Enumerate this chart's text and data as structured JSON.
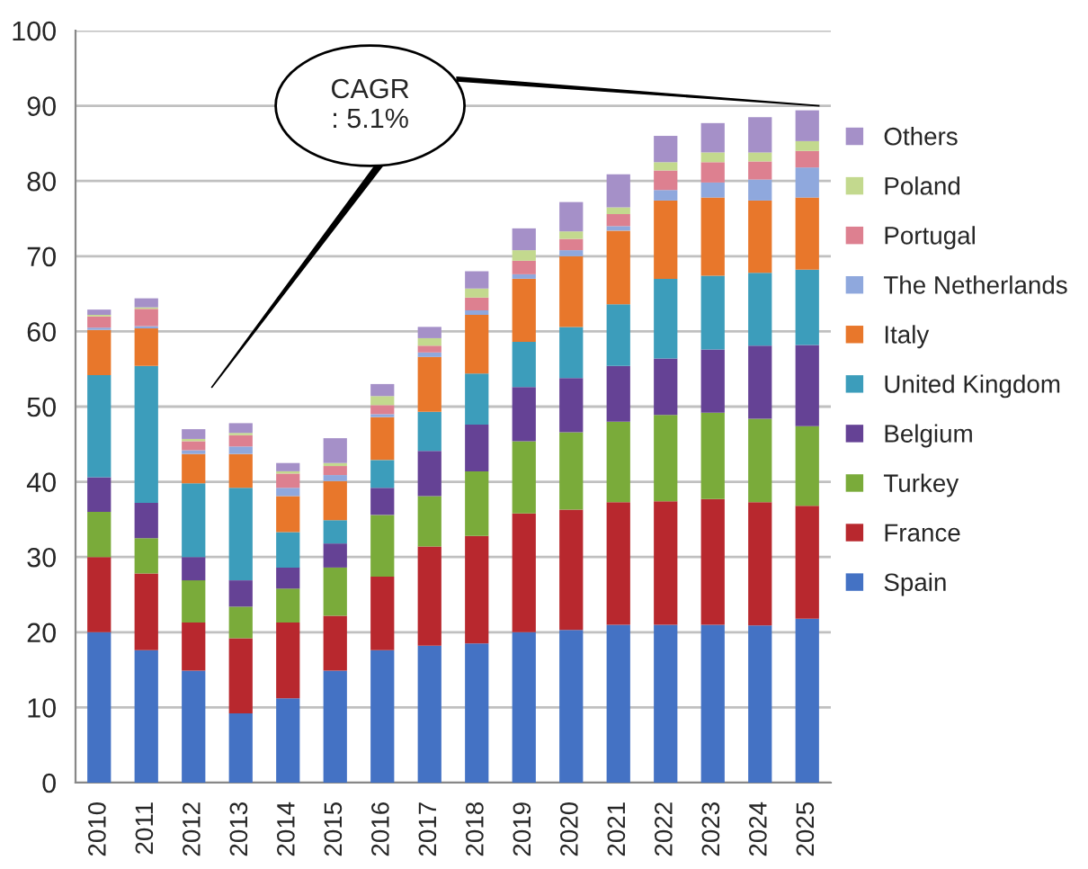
{
  "chart_data": {
    "type": "bar",
    "stacked": true,
    "categories": [
      "2010",
      "2011",
      "2012",
      "2013",
      "2014",
      "2015",
      "2016",
      "2017",
      "2018",
      "2019",
      "2020",
      "2021",
      "2022",
      "2023",
      "2024",
      "2025"
    ],
    "series": [
      {
        "name": "Spain",
        "color": "#4472c4",
        "values": [
          20,
          17.6,
          14.9,
          9.2,
          11.2,
          14.9,
          17.6,
          18.2,
          18.5,
          20,
          20.3,
          21,
          21,
          21,
          20.9,
          21.8
        ]
      },
      {
        "name": "France",
        "color": "#b8282e",
        "values": [
          10,
          10.2,
          6.4,
          10,
          10.1,
          7.3,
          9.8,
          13.2,
          14.3,
          15.8,
          16,
          16.3,
          16.4,
          16.7,
          16.4,
          15
        ]
      },
      {
        "name": "Turkey",
        "color": "#7aab3a",
        "values": [
          6,
          4.7,
          5.6,
          4.2,
          4.5,
          6.4,
          8.2,
          6.7,
          8.6,
          9.6,
          10.3,
          10.7,
          11.5,
          11.5,
          11.1,
          10.6
        ]
      },
      {
        "name": "Belgium",
        "color": "#654295",
        "values": [
          4.6,
          4.7,
          3.1,
          3.5,
          2.8,
          3.2,
          3.6,
          6,
          6.2,
          7.2,
          7.2,
          7.4,
          7.5,
          8.4,
          9.7,
          10.8
        ]
      },
      {
        "name": "United Kingdom",
        "color": "#3c9dbb",
        "values": [
          13.6,
          18.2,
          9.8,
          12.3,
          4.7,
          3.1,
          3.7,
          5.2,
          6.8,
          6,
          6.8,
          8.2,
          10.6,
          9.8,
          9.7,
          10
        ]
      },
      {
        "name": "Italy",
        "color": "#e8772b",
        "values": [
          6,
          5,
          3.9,
          4.5,
          4.8,
          5.2,
          5.7,
          7.3,
          7.8,
          8.4,
          9.4,
          9.8,
          10.4,
          10.4,
          9.6,
          9.6
        ]
      },
      {
        "name": "The Netherlands",
        "color": "#8fa8dd",
        "values": [
          0.3,
          0.3,
          0.5,
          1,
          1.1,
          0.8,
          0.4,
          0.6,
          0.6,
          0.6,
          0.8,
          0.6,
          1.4,
          2,
          2.8,
          4
        ]
      },
      {
        "name": "Portugal",
        "color": "#dd8090",
        "values": [
          1.5,
          2.3,
          1.2,
          1.5,
          1.9,
          1.2,
          1.2,
          0.9,
          1.7,
          1.8,
          1.5,
          1.6,
          2.6,
          2.7,
          2.4,
          2.2
        ]
      },
      {
        "name": "Poland",
        "color": "#c3d98e",
        "values": [
          0.2,
          0.2,
          0.3,
          0.3,
          0.3,
          0.4,
          1.2,
          1,
          1.2,
          1.4,
          1,
          0.9,
          1.1,
          1.3,
          1.2,
          1.3
        ]
      },
      {
        "name": "Others",
        "color": "#a590c8",
        "values": [
          0.7,
          1.2,
          1.3,
          1.3,
          1.1,
          3.3,
          1.6,
          1.5,
          2.3,
          2.9,
          3.9,
          4.4,
          3.5,
          3.9,
          4.7,
          4.1
        ]
      }
    ],
    "ylim": [
      0,
      100
    ],
    "yticks": [
      0,
      10,
      20,
      30,
      40,
      50,
      60,
      70,
      80,
      90,
      100
    ],
    "grid": "y",
    "legend": "right",
    "annotations": [
      "CAGR\n: 5.1%"
    ]
  }
}
